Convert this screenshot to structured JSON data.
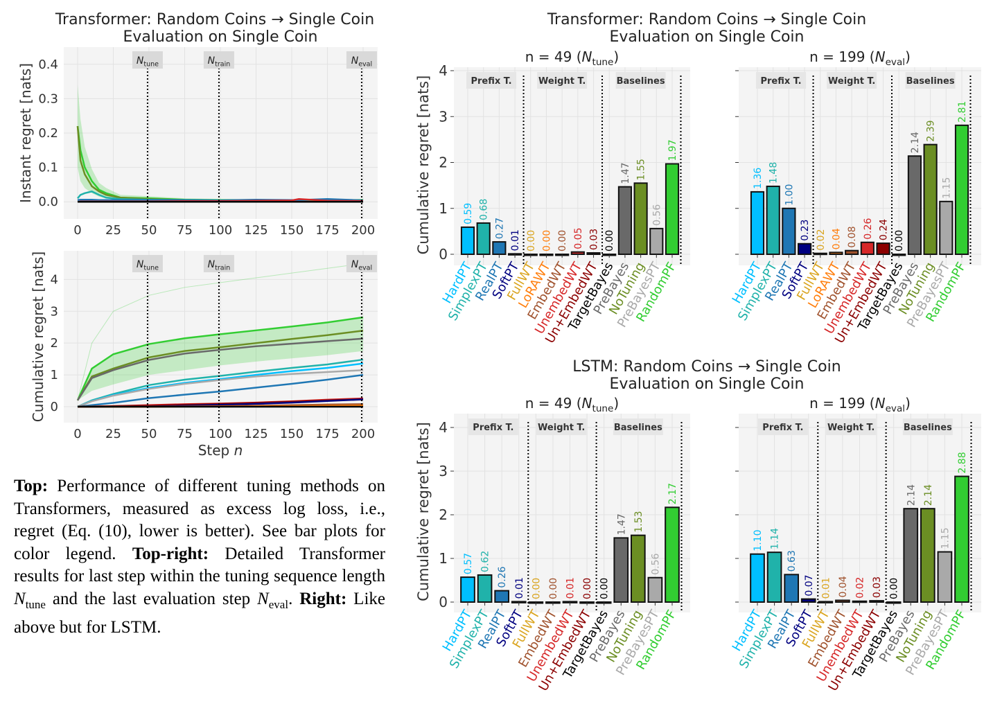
{
  "colors": {
    "HardPT": "#00bfff",
    "SimplexPT": "#20b2aa",
    "RealPT": "#1f77b4",
    "SoftPT": "#000080",
    "FullWT": "#daa520",
    "LoRAWT": "#ff7f0e",
    "EmbedWT": "#a0522d",
    "UnembedWT": "#d62728",
    "Un+EmbedWT": "#8b0000",
    "TargetBayes": "#000000",
    "PreBayes": "#696969",
    "NoTuning": "#6b8e23",
    "PreBayesPT": "#a9a9a9",
    "RandomPF": "#32cd32"
  },
  "left_title": {
    "line1": "Transformer: Random Coins → Single Coin",
    "line2": "Evaluation on Single Coin"
  },
  "transformer_title": {
    "line1": "Transformer: Random Coins → Single Coin",
    "line2": "Evaluation on Single Coin"
  },
  "lstm_title": {
    "line1": "LSTM: Random Coins → Single Coin",
    "line2": "Evaluation on Single Coin"
  },
  "markers": [
    {
      "step": 49,
      "sym": "N",
      "sub": "tune"
    },
    {
      "step": 99,
      "sym": "N",
      "sub": "train"
    },
    {
      "step": 199,
      "sym": "N",
      "sub": "eval"
    }
  ],
  "group_labels": [
    "Prefix T.",
    "Weight T.",
    "Baselines"
  ],
  "chart_data": [
    {
      "type": "line",
      "ylabel": "Instant regret [nats]",
      "xlabel": "",
      "xlim": [
        0,
        200
      ],
      "ylim": [
        -0.05,
        0.45
      ],
      "grid": true,
      "xticks": [
        0,
        25,
        50,
        75,
        100,
        125,
        150,
        175,
        200
      ],
      "yticks": [
        0.0,
        0.1,
        0.2,
        0.3,
        0.4
      ],
      "ytick_labels": [
        "0.0",
        "0.1",
        "0.2",
        "0.3",
        "0.4"
      ],
      "x": [
        0,
        2,
        5,
        10,
        15,
        20,
        30,
        50,
        75,
        100,
        125,
        150,
        155,
        175,
        200
      ],
      "series": [
        {
          "key": "RandomPF",
          "values": [
            0.22,
            0.15,
            0.1,
            0.06,
            0.035,
            0.025,
            0.012,
            0.01,
            0.006,
            0.005,
            0.005,
            0.004,
            0.006,
            0.005,
            0.005
          ],
          "band": [
            0.12,
            0.09,
            0.06,
            0.035,
            0.02,
            0.015,
            0.008,
            0.006,
            0.004,
            0.003,
            0.003,
            0.003,
            0.003,
            0.003,
            0.003
          ]
        },
        {
          "key": "NoTuning",
          "values": [
            0.22,
            0.12,
            0.08,
            0.045,
            0.03,
            0.02,
            0.012,
            0.008,
            0.005,
            0.004,
            0.004,
            0.004,
            0.005,
            0.004,
            0.004
          ]
        },
        {
          "key": "SimplexPT",
          "values": [
            0.01,
            0.02,
            0.025,
            0.03,
            0.02,
            0.012,
            0.008,
            0.006,
            0.005,
            0.004,
            0.005,
            0.004,
            0.005,
            0.006,
            0.004
          ]
        },
        {
          "key": "RealPT",
          "values": [
            0.005,
            0.006,
            0.006,
            0.006,
            0.005,
            0.005,
            0.005,
            0.005,
            0.005,
            0.004,
            0.006,
            0.005,
            0.005,
            0.008,
            0.004
          ]
        },
        {
          "key": "UnembedWT",
          "values": [
            0.0,
            0.001,
            0.001,
            0.001,
            0.001,
            0.001,
            0.001,
            0.001,
            0.002,
            0.002,
            0.003,
            0.004,
            0.008,
            0.003,
            0.002
          ]
        },
        {
          "key": "TargetBayes",
          "values": [
            0,
            0,
            0,
            0,
            0,
            0,
            0,
            0,
            0,
            0,
            0,
            0,
            0,
            0,
            0
          ]
        }
      ]
    },
    {
      "type": "line",
      "ylabel": "Cumulative regret [nats]",
      "xlabel": "Step n",
      "xlim": [
        0,
        200
      ],
      "ylim": [
        -0.5,
        4.9
      ],
      "grid": true,
      "xticks": [
        0,
        25,
        50,
        75,
        100,
        125,
        150,
        175,
        200
      ],
      "yticks": [
        0,
        1,
        2,
        3,
        4
      ],
      "ytick_labels": [
        "0",
        "1",
        "2",
        "3",
        "4"
      ],
      "x": [
        0,
        10,
        25,
        50,
        75,
        100,
        125,
        150,
        175,
        200
      ],
      "series": [
        {
          "key": "RandomPF",
          "values": [
            0.2,
            1.2,
            1.65,
            1.97,
            2.15,
            2.28,
            2.4,
            2.52,
            2.65,
            2.81
          ],
          "band_low": [
            0.2,
            0.5,
            0.7,
            1.0,
            1.15,
            1.3,
            1.42,
            1.52,
            1.62,
            1.75
          ]
        },
        {
          "key": "RandomPF",
          "thin": true,
          "values": [
            0.2,
            2.0,
            3.0,
            3.5,
            3.75,
            3.9,
            4.05,
            4.2,
            4.35,
            4.5
          ]
        },
        {
          "key": "NoTuning",
          "values": [
            0.2,
            0.95,
            1.2,
            1.55,
            1.75,
            1.87,
            2.0,
            2.13,
            2.25,
            2.39
          ]
        },
        {
          "key": "PreBayes",
          "values": [
            0.2,
            0.9,
            1.15,
            1.47,
            1.67,
            1.79,
            1.9,
            1.98,
            2.06,
            2.14
          ]
        },
        {
          "key": "SimplexPT",
          "values": [
            0,
            0.2,
            0.4,
            0.68,
            0.85,
            0.97,
            1.1,
            1.22,
            1.33,
            1.48
          ]
        },
        {
          "key": "HardPT",
          "values": [
            0,
            0.18,
            0.37,
            0.59,
            0.75,
            0.87,
            1.0,
            1.12,
            1.22,
            1.36
          ]
        },
        {
          "key": "PreBayesPT",
          "values": [
            0,
            0.17,
            0.35,
            0.56,
            0.72,
            0.84,
            0.95,
            1.03,
            1.09,
            1.15
          ]
        },
        {
          "key": "RealPT",
          "values": [
            0,
            0.05,
            0.12,
            0.27,
            0.38,
            0.48,
            0.6,
            0.72,
            0.85,
            1.0
          ]
        },
        {
          "key": "UnembedWT",
          "values": [
            0,
            0.005,
            0.02,
            0.05,
            0.08,
            0.1,
            0.13,
            0.17,
            0.22,
            0.26
          ]
        },
        {
          "key": "Un+EmbedWT",
          "values": [
            0,
            0.005,
            0.02,
            0.03,
            0.06,
            0.09,
            0.12,
            0.16,
            0.2,
            0.24
          ]
        },
        {
          "key": "SoftPT",
          "values": [
            0,
            0.002,
            0.005,
            0.01,
            0.03,
            0.06,
            0.09,
            0.13,
            0.18,
            0.23
          ]
        },
        {
          "key": "EmbedWT",
          "values": [
            0,
            0,
            0,
            0,
            0.01,
            0.02,
            0.03,
            0.05,
            0.07,
            0.08
          ]
        },
        {
          "key": "LoRAWT",
          "values": [
            0,
            0,
            0,
            0,
            0.005,
            0.01,
            0.015,
            0.02,
            0.03,
            0.04
          ]
        },
        {
          "key": "TargetBayes",
          "values": [
            0,
            0,
            0,
            0,
            0,
            0,
            0,
            0,
            0,
            0
          ]
        }
      ]
    },
    {
      "type": "bar",
      "subtitle": {
        "pre": "n = 49 (",
        "sym": "N",
        "sub": "tune",
        "post": ")"
      },
      "ylabel": "Cumulative regret [nats]",
      "ylim": [
        0,
        4.2
      ],
      "yticks": [
        0,
        1,
        2,
        3,
        4
      ],
      "ytick_labels": [
        "0",
        "1",
        "2",
        "3",
        "4"
      ],
      "categories": [
        "HardPT",
        "SimplexPT",
        "RealPT",
        "SoftPT",
        "FullWT",
        "LoRAWT",
        "EmbedWT",
        "UnembedWT",
        "Un+EmbedWT",
        "TargetBayes",
        "PreBayes",
        "NoTuning",
        "PreBayesPT",
        "RandomPF"
      ],
      "values": [
        0.59,
        0.68,
        0.27,
        0.01,
        0.0,
        0.0,
        0.0,
        0.05,
        0.03,
        0.0,
        1.47,
        1.55,
        0.56,
        1.97
      ],
      "value_labels": [
        "0.59",
        "0.68",
        "0.27",
        "0.01",
        "0.00",
        "0.00",
        "0.00",
        "0.05",
        "0.03",
        "0.00",
        "1.47",
        "1.55",
        "0.56",
        "1.97"
      ],
      "group_ends": [
        3,
        8,
        13
      ]
    },
    {
      "type": "bar",
      "subtitle": {
        "pre": "n = 199 (",
        "sym": "N",
        "sub": "eval",
        "post": ")"
      },
      "ylim": [
        0,
        4.2
      ],
      "yticks": [
        0,
        1,
        2,
        3,
        4
      ],
      "categories": [
        "HardPT",
        "SimplexPT",
        "RealPT",
        "SoftPT",
        "FullWT",
        "LoRAWT",
        "EmbedWT",
        "UnembedWT",
        "Un+EmbedWT",
        "TargetBayes",
        "PreBayes",
        "NoTuning",
        "PreBayesPT",
        "RandomPF"
      ],
      "values": [
        1.36,
        1.48,
        1.0,
        0.23,
        0.02,
        0.04,
        0.08,
        0.26,
        0.24,
        0.0,
        2.14,
        2.39,
        1.15,
        2.81
      ],
      "value_labels": [
        "1.36",
        "1.48",
        "1.00",
        "0.23",
        "0.02",
        "0.04",
        "0.08",
        "0.26",
        "0.24",
        "0.00",
        "2.14",
        "2.39",
        "1.15",
        "2.81"
      ],
      "group_ends": [
        3,
        8,
        13
      ]
    },
    {
      "type": "bar",
      "subtitle": {
        "pre": "n = 49 (",
        "sym": "N",
        "sub": "tune",
        "post": ")"
      },
      "ylabel": "Cumulative regret [nats]",
      "ylim": [
        0,
        4.2
      ],
      "yticks": [
        0,
        1,
        2,
        3,
        4
      ],
      "ytick_labels": [
        "0",
        "1",
        "2",
        "3",
        "4"
      ],
      "categories": [
        "HardPT",
        "SimplexPT",
        "RealPT",
        "SoftPT",
        "FullWT",
        "EmbedWT",
        "UnembedWT",
        "Un+EmbedWT",
        "TargetBayes",
        "PreBayes",
        "NoTuning",
        "PreBayesPT",
        "RandomPF"
      ],
      "values": [
        0.57,
        0.62,
        0.26,
        0.01,
        0.0,
        0.0,
        0.01,
        0.0,
        0.0,
        1.47,
        1.53,
        0.56,
        2.17
      ],
      "value_labels": [
        "0.57",
        "0.62",
        "0.26",
        "0.01",
        "0.00",
        "0.00",
        "0.01",
        "0.00",
        "0.00",
        "1.47",
        "1.53",
        "0.56",
        "2.17"
      ],
      "group_ends": [
        3,
        7,
        12
      ]
    },
    {
      "type": "bar",
      "subtitle": {
        "pre": "n = 199 (",
        "sym": "N",
        "sub": "eval",
        "post": ")"
      },
      "ylim": [
        0,
        4.2
      ],
      "yticks": [
        0,
        1,
        2,
        3,
        4
      ],
      "categories": [
        "HardPT",
        "SimplexPT",
        "RealPT",
        "SoftPT",
        "FullWT",
        "EmbedWT",
        "UnembedWT",
        "Un+EmbedWT",
        "TargetBayes",
        "PreBayes",
        "NoTuning",
        "PreBayesPT",
        "RandomPF"
      ],
      "values": [
        1.1,
        1.14,
        0.63,
        0.07,
        0.01,
        0.04,
        0.02,
        0.03,
        0.0,
        2.14,
        2.14,
        1.15,
        2.88
      ],
      "value_labels": [
        "1.10",
        "1.14",
        "0.63",
        "0.07",
        "0.01",
        "0.04",
        "0.02",
        "0.03",
        "0.00",
        "2.14",
        "2.14",
        "1.15",
        "2.88"
      ],
      "group_ends": [
        3,
        7,
        12
      ]
    }
  ],
  "caption": {
    "b1": "Top:",
    "t1": " Performance of different tuning methods on Transformers, measured as excess log loss, i.e., regret (Eq. (10), lower is better). See bar plots for color legend. ",
    "b2": "Top-right:",
    "t2": " Detailed Transformer results for last step within the tuning sequence length ",
    "n1": "N",
    "s1": "tune",
    "t3": " and the last evaluation step ",
    "n2": "N",
    "s2": "eval",
    "t4": ". ",
    "b3": "Right:",
    "t5": " Like above but for LSTM."
  }
}
